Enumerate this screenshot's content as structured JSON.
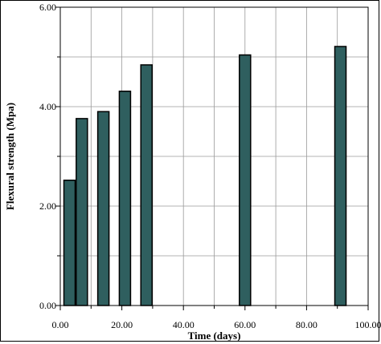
{
  "chart_data": {
    "type": "bar",
    "xlabel": "Time (days)",
    "ylabel": "Flexural strength (Mpa)",
    "xlim": [
      0,
      100
    ],
    "ylim": [
      0,
      6
    ],
    "x_ticks": [
      "0.00",
      "20.00",
      "40.00",
      "60.00",
      "80.00",
      "100.00"
    ],
    "y_ticks": [
      "0.00",
      "2.00",
      "4.00",
      "6.00"
    ],
    "grid": true,
    "bar_color": "#2f5f5f",
    "x": [
      3,
      7,
      14,
      21,
      28,
      60,
      91
    ],
    "values": [
      2.52,
      3.76,
      3.9,
      4.31,
      4.84,
      5.04,
      5.21
    ]
  }
}
